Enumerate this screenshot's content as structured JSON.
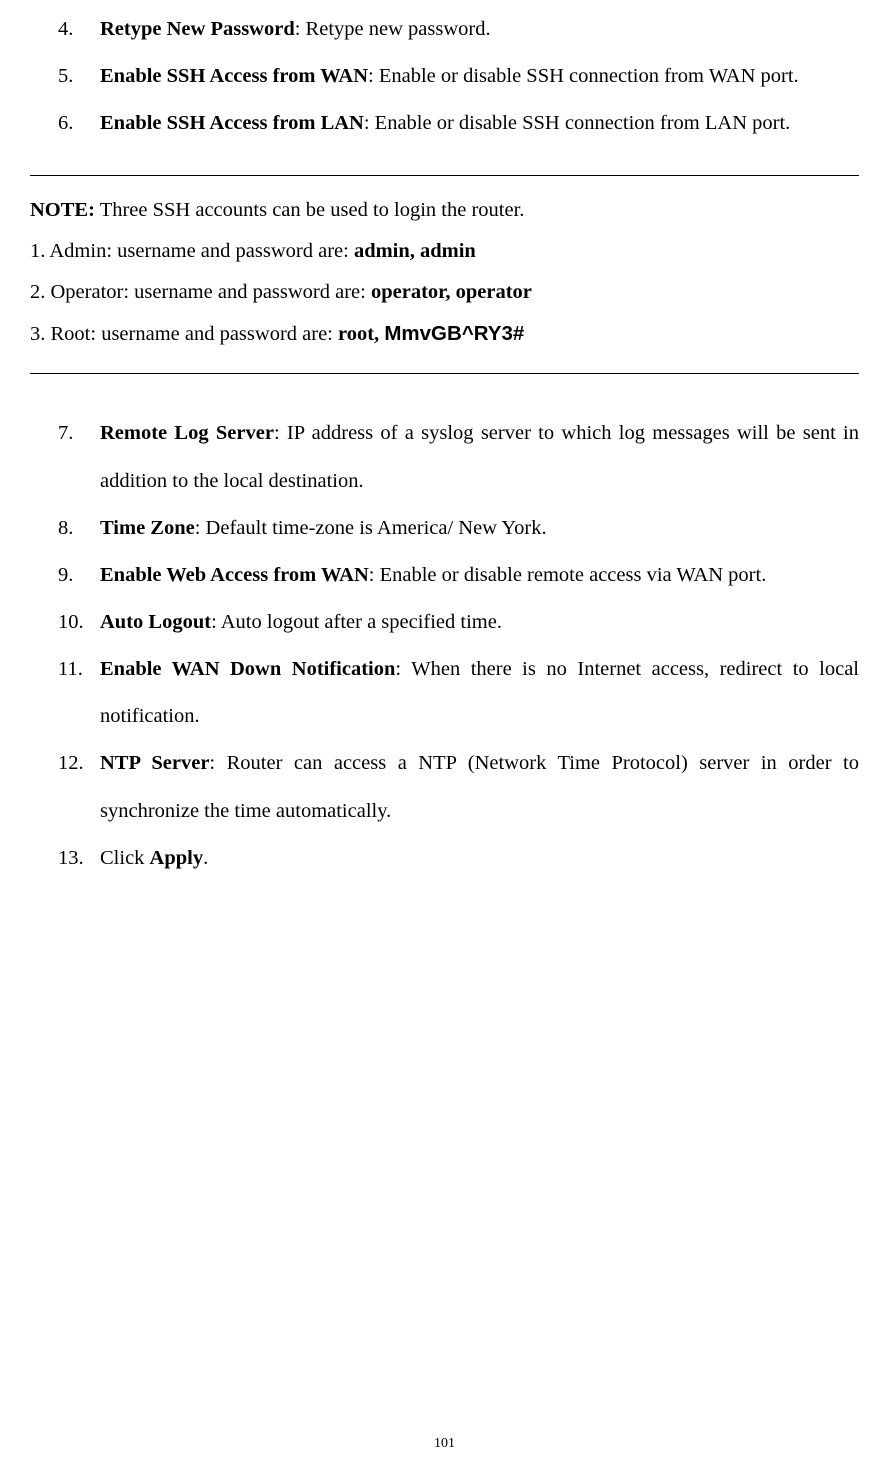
{
  "list1": [
    {
      "num": "4.",
      "term": "Retype New Password",
      "desc": ": Retype new password."
    },
    {
      "num": "5.",
      "term": "Enable SSH Access from WAN",
      "desc": ": Enable or disable SSH connection from WAN port."
    },
    {
      "num": "6.",
      "term": "Enable SSH Access from LAN",
      "desc": ": Enable or disable SSH connection from LAN port."
    }
  ],
  "note": {
    "lead_bold": "NOTE:",
    "lead_rest": " Three SSH accounts can be used to login the router.",
    "l1_pre": "1. Admin: username and password are: ",
    "l1_bold": "admin, admin",
    "l2_pre": "2. Operator: username and password are: ",
    "l2_bold": "operator, operator",
    "l3_pre": "3. Root: username and password are: ",
    "l3_bold1": "root, ",
    "l3_bold2": "MmvGB^RY3#"
  },
  "list2": [
    {
      "num": "7.",
      "term": "Remote Log Server",
      "desc": ": IP address of a syslog server to which log messages will be sent in addition to the local destination."
    },
    {
      "num": "8.",
      "term": "Time Zone",
      "desc": ": Default time-zone is America/ New York."
    },
    {
      "num": "9.",
      "term": "Enable Web Access from WAN",
      "desc": ": Enable or disable remote access via WAN port."
    },
    {
      "num": "10.",
      "term": "Auto Logout",
      "desc": ": Auto logout after a specified time."
    },
    {
      "num": "11.",
      "term": "Enable WAN Down Notification",
      "desc": ": When there is no Internet access, redirect to local notification."
    },
    {
      "num": "12.",
      "term": "NTP Server",
      "desc": ": Router can access a NTP (Network Time Protocol) server in order to synchronize the time automatically."
    }
  ],
  "last_item": {
    "num": "13.",
    "pre": "Click ",
    "bold": "Apply",
    "post": "."
  },
  "page_number": "101"
}
